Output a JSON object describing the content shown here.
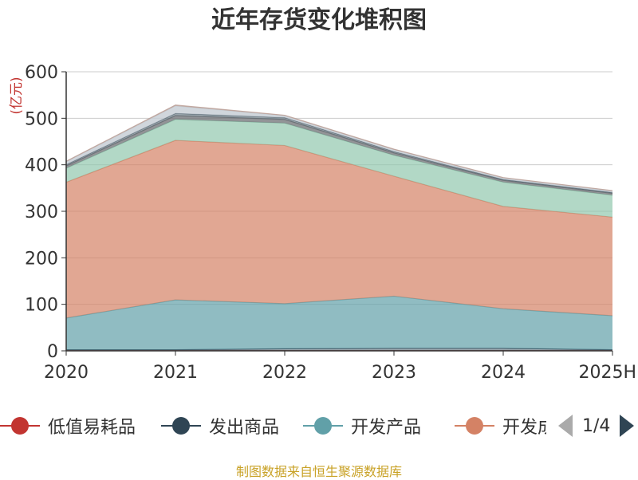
{
  "title": "近年存货变化堆积图",
  "y_unit": "(亿元)",
  "source_note": "制图数据来自恒生聚源数据库",
  "pager": {
    "text": "1/4"
  },
  "legend": [
    {
      "label": "低值易耗品",
      "color": "#c23531"
    },
    {
      "label": "发出商品",
      "color": "#2f4554"
    },
    {
      "label": "开发产品",
      "color": "#61a0a8"
    },
    {
      "label": "开发成本",
      "color": "#d48265"
    }
  ],
  "chart_data": {
    "type": "area",
    "stacked": true,
    "categories": [
      "2020",
      "2021",
      "2022",
      "2023",
      "2024",
      "2025H"
    ],
    "ylim": [
      0,
      600
    ],
    "yticks": [
      0,
      100,
      200,
      300,
      400,
      500,
      600
    ],
    "ylabel": "(亿元)",
    "grid": true,
    "series": [
      {
        "name": "低值易耗品",
        "color": "#c23531",
        "opacity": 0.5,
        "values": [
          0.5,
          0.5,
          0.5,
          0.5,
          0.5,
          0.5
        ]
      },
      {
        "name": "发出商品",
        "color": "#2f4554",
        "opacity": 0.5,
        "values": [
          2,
          2,
          4,
          5,
          5,
          2
        ]
      },
      {
        "name": "开发产品",
        "color": "#61a0a8",
        "opacity": 0.7,
        "values": [
          68,
          107,
          97,
          112,
          85,
          73
        ]
      },
      {
        "name": "开发成本",
        "color": "#d48265",
        "opacity": 0.7,
        "values": [
          292,
          343,
          340,
          258,
          220,
          212
        ]
      },
      {
        "name": "",
        "color": "#91c7ae",
        "opacity": 0.7,
        "values": [
          30,
          45,
          48,
          45,
          52,
          47
        ]
      },
      {
        "name": "",
        "color": "#6e7074",
        "opacity": 0.75,
        "values": [
          5,
          8,
          8,
          5,
          4,
          4
        ]
      },
      {
        "name": "",
        "color": "#546570",
        "opacity": 0.6,
        "values": [
          3,
          5,
          4,
          3,
          2,
          2
        ]
      },
      {
        "name": "",
        "color": "#c4ccd3",
        "opacity": 0.8,
        "values": [
          6,
          16,
          4,
          4,
          3,
          3
        ]
      },
      {
        "name": "",
        "color": "#bda29a",
        "opacity": 0.7,
        "values": [
          1,
          2,
          1,
          1,
          1,
          1
        ]
      }
    ]
  }
}
